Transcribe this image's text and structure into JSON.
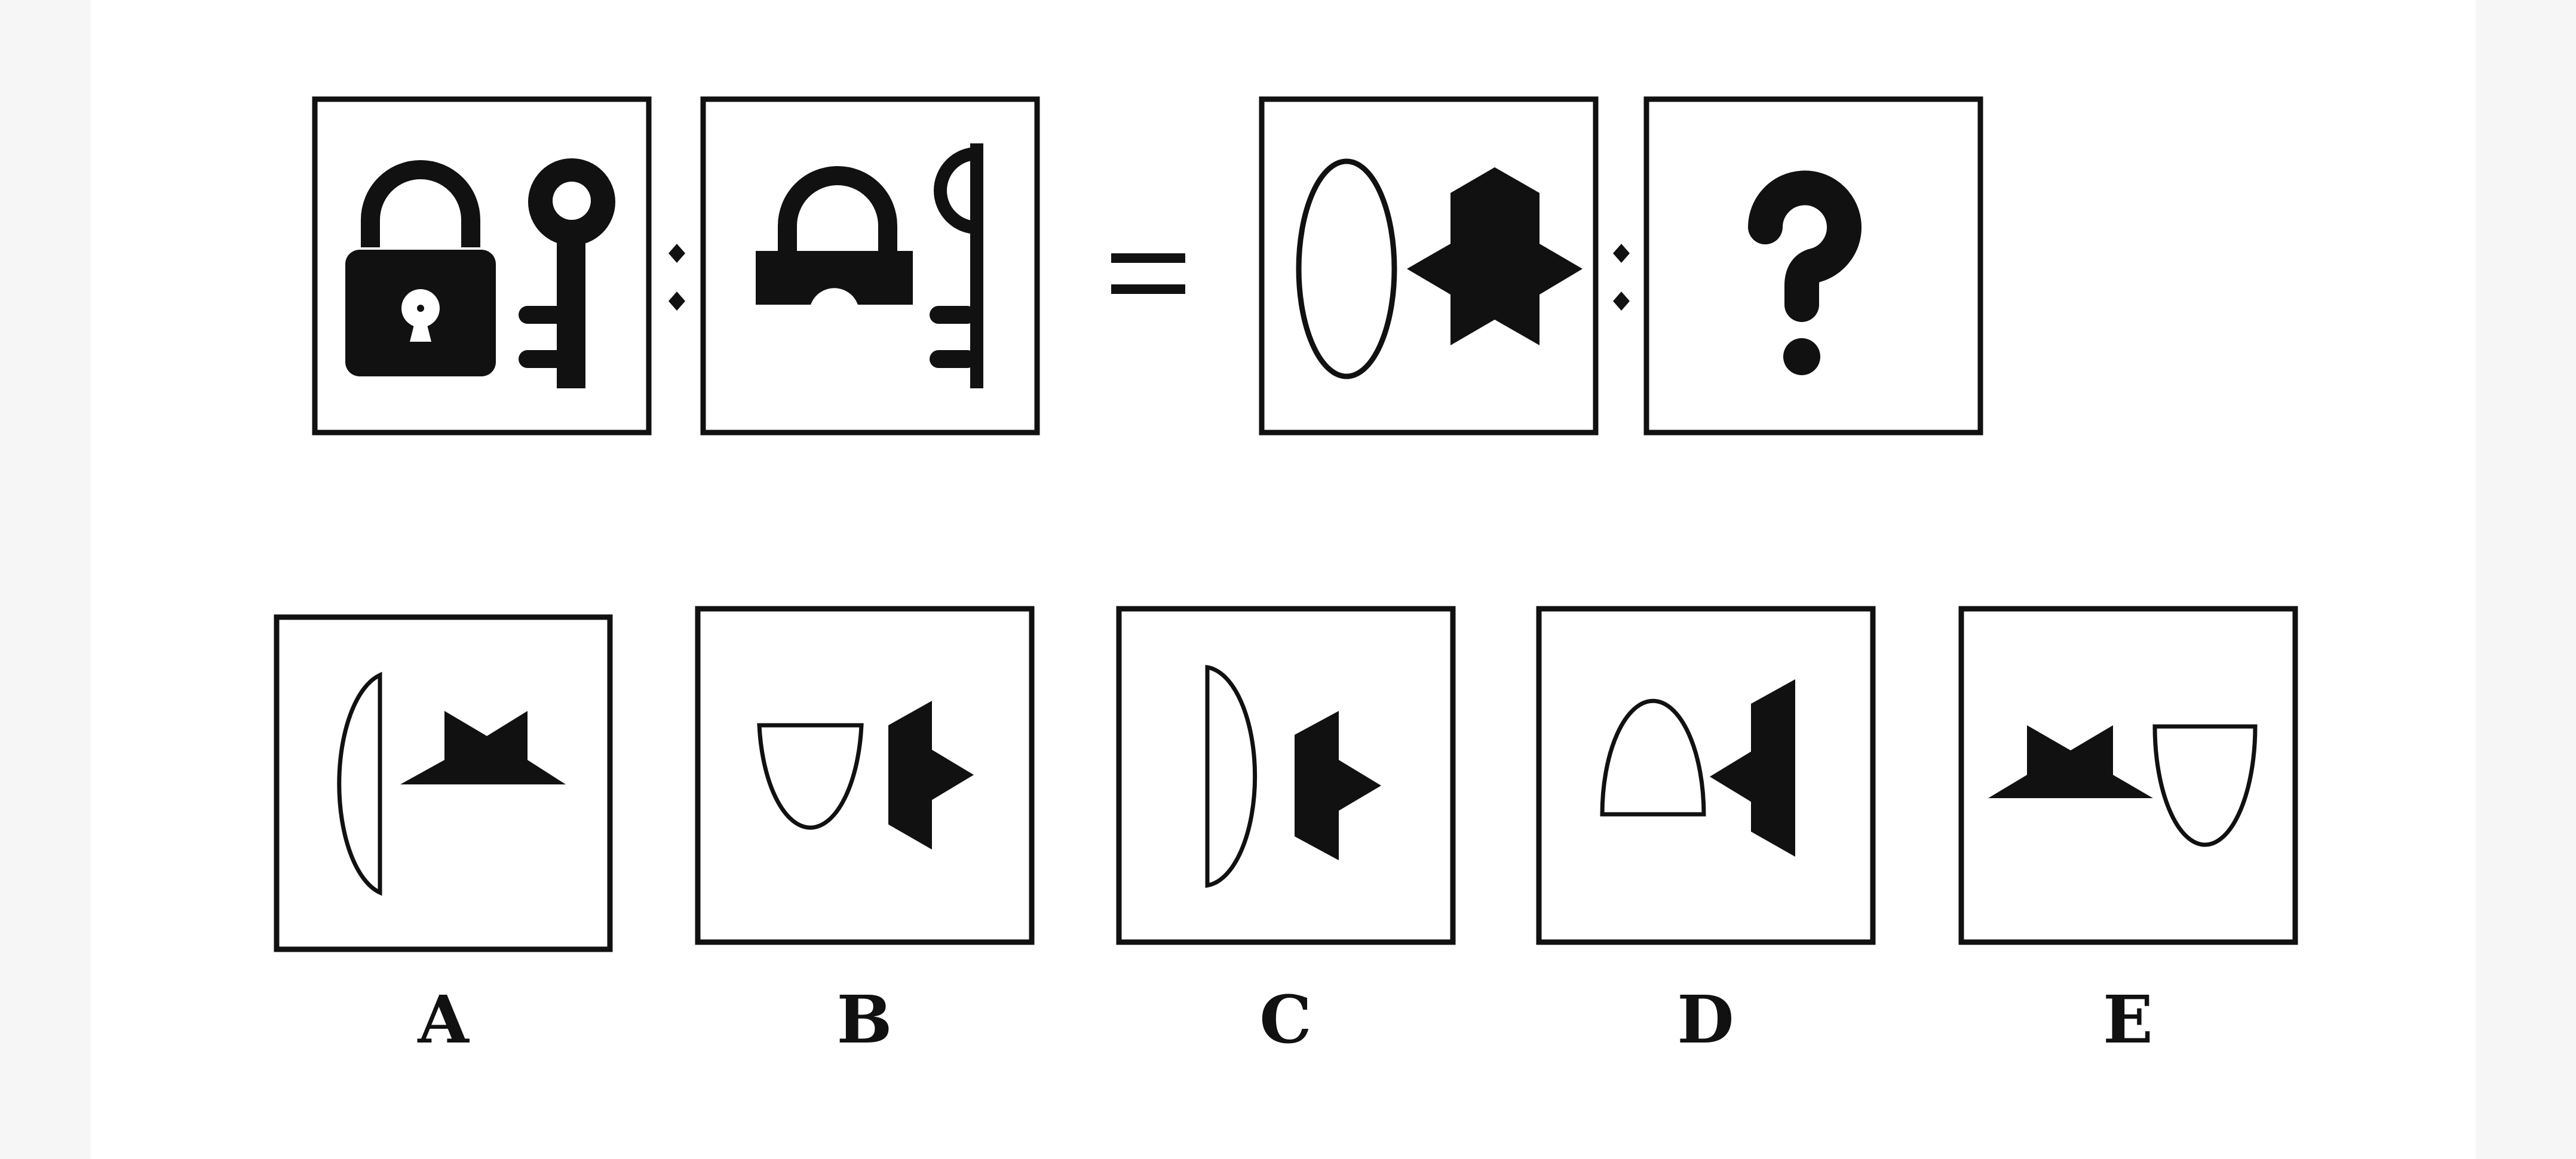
{
  "colors": {
    "background": "#ffffff",
    "margin": "#f6f6f6",
    "ink": "#111111"
  },
  "question": {
    "relation_symbol": ":",
    "equals_symbol": "=",
    "cells": [
      {
        "id": "lock-key",
        "icons": [
          "padlock-icon",
          "key-icon"
        ]
      },
      {
        "id": "lock-key-half",
        "icons": [
          "half-padlock-icon",
          "half-key-icon"
        ]
      },
      {
        "id": "oval-star",
        "icons": [
          "oval-outline-icon",
          "six-point-star-icon"
        ]
      },
      {
        "id": "unknown",
        "icons": [
          "question-mark-icon"
        ]
      }
    ]
  },
  "answers": [
    {
      "label": "A",
      "icons": [
        "half-oval-icon",
        "half-star-icon"
      ]
    },
    {
      "label": "B",
      "icons": [
        "half-oval-icon",
        "half-star-icon"
      ]
    },
    {
      "label": "C",
      "icons": [
        "half-oval-icon",
        "half-star-icon"
      ]
    },
    {
      "label": "D",
      "icons": [
        "half-oval-icon",
        "half-star-icon"
      ]
    },
    {
      "label": "E",
      "icons": [
        "half-star-icon",
        "half-oval-icon"
      ]
    }
  ]
}
